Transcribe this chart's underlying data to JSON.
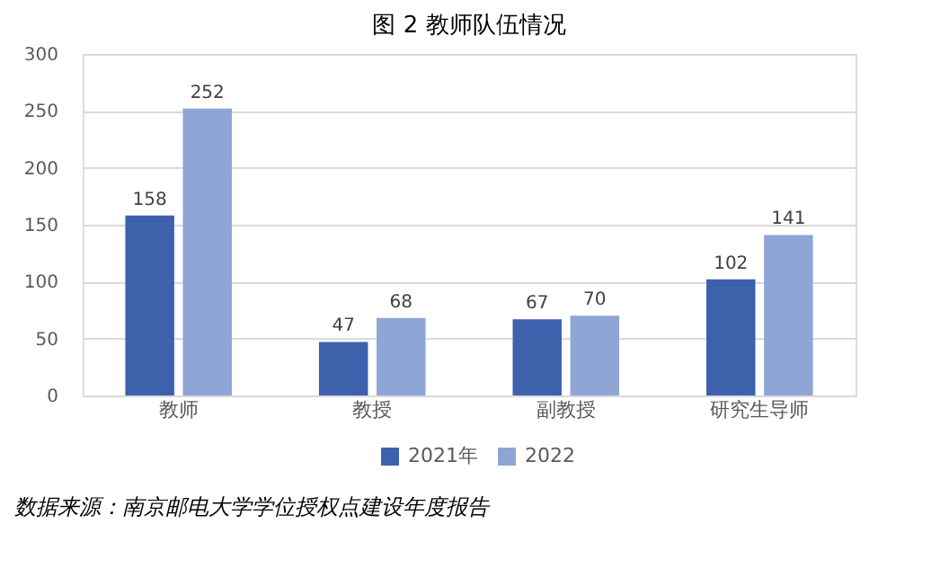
{
  "chart_data": {
    "type": "bar",
    "title": "图 2 教师队伍情况",
    "categories": [
      "教师",
      "教授",
      "副教授",
      "研究生导师"
    ],
    "series": [
      {
        "name": "2021年",
        "color": "#3e61ac",
        "values": [
          158,
          47,
          67,
          102
        ]
      },
      {
        "name": "2022",
        "color": "#8fa5d6",
        "values": [
          252,
          68,
          70,
          141
        ]
      }
    ],
    "ylim": [
      0,
      300
    ],
    "yticks": [
      0,
      50,
      100,
      150,
      200,
      250,
      300
    ],
    "grid": "y",
    "legend": "bottom",
    "data_labels": true,
    "annotations": [
      "数据来源：南京邮电大学学位授权点建设年度报告"
    ]
  }
}
